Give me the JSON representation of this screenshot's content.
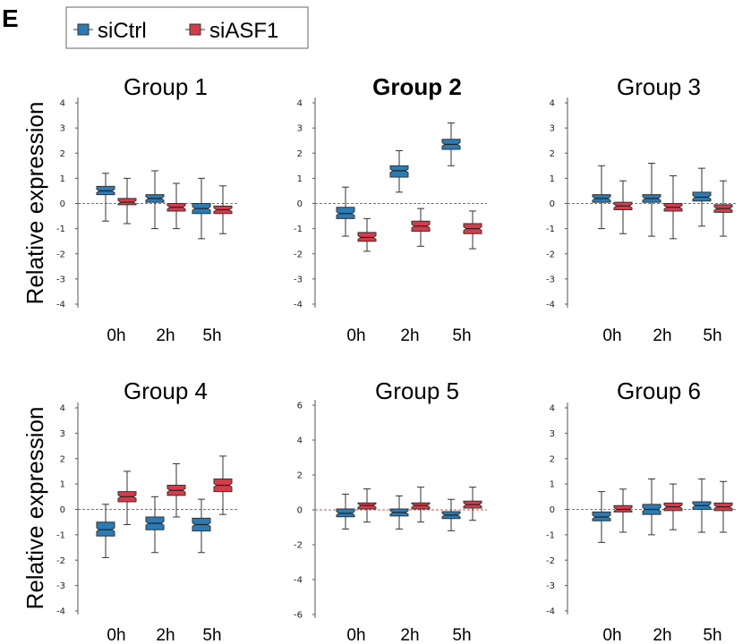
{
  "chart_data": {
    "type": "boxplot",
    "panel_label": "E",
    "legend": [
      {
        "name": "siCtrl",
        "color": "#2b7bb5"
      },
      {
        "name": "siASF1",
        "color": "#d63b4a"
      }
    ],
    "ylabel": "Relative expression",
    "categories": [
      "0h",
      "2h",
      "5h"
    ],
    "reference_line": 0,
    "panels": [
      {
        "title": "Group 1",
        "bold": false,
        "ylim": [
          -4,
          4
        ],
        "yticks": [
          "4",
          "3",
          "2",
          "1",
          "0",
          "-1",
          "-2",
          "-3",
          "-4"
        ],
        "series": [
          {
            "name": "siCtrl",
            "boxes": [
              {
                "median": 0.5,
                "q1": 0.35,
                "q3": 0.68,
                "whisker_low": -0.7,
                "whisker_high": 1.2
              },
              {
                "median": 0.2,
                "q1": 0.05,
                "q3": 0.35,
                "whisker_low": -1.0,
                "whisker_high": 1.3
              },
              {
                "median": -0.2,
                "q1": -0.4,
                "q3": 0.0,
                "whisker_low": -1.4,
                "whisker_high": 1.0
              }
            ]
          },
          {
            "name": "siASF1",
            "boxes": [
              {
                "median": 0.05,
                "q1": -0.05,
                "q3": 0.2,
                "whisker_low": -0.8,
                "whisker_high": 1.0
              },
              {
                "median": -0.15,
                "q1": -0.3,
                "q3": 0.0,
                "whisker_low": -1.0,
                "whisker_high": 0.8
              },
              {
                "median": -0.25,
                "q1": -0.4,
                "q3": -0.1,
                "whisker_low": -1.2,
                "whisker_high": 0.7
              }
            ]
          }
        ]
      },
      {
        "title": "Group 2",
        "bold": true,
        "ylim": [
          -4,
          4
        ],
        "yticks": [
          "4",
          "3",
          "2",
          "1",
          "0",
          "-1",
          "-2",
          "-3",
          "-4"
        ],
        "series": [
          {
            "name": "siCtrl",
            "boxes": [
              {
                "median": -0.4,
                "q1": -0.6,
                "q3": -0.15,
                "whisker_low": -1.3,
                "whisker_high": 0.65
              },
              {
                "median": 1.3,
                "q1": 1.05,
                "q3": 1.5,
                "whisker_low": 0.45,
                "whisker_high": 2.1
              },
              {
                "median": 2.35,
                "q1": 2.15,
                "q3": 2.55,
                "whisker_low": 1.5,
                "whisker_high": 3.2
              }
            ]
          },
          {
            "name": "siASF1",
            "boxes": [
              {
                "median": -1.35,
                "q1": -1.5,
                "q3": -1.15,
                "whisker_low": -1.9,
                "whisker_high": -0.6
              },
              {
                "median": -0.9,
                "q1": -1.1,
                "q3": -0.7,
                "whisker_low": -1.7,
                "whisker_high": -0.2
              },
              {
                "median": -1.0,
                "q1": -1.2,
                "q3": -0.8,
                "whisker_low": -1.8,
                "whisker_high": -0.3
              }
            ]
          }
        ]
      },
      {
        "title": "Group 3",
        "bold": false,
        "ylim": [
          -4,
          4
        ],
        "yticks": [
          "4",
          "3",
          "2",
          "1",
          "0",
          "-1",
          "-2",
          "-3",
          "-4"
        ],
        "series": [
          {
            "name": "siCtrl",
            "boxes": [
              {
                "median": 0.2,
                "q1": 0.05,
                "q3": 0.35,
                "whisker_low": -1.0,
                "whisker_high": 1.5
              },
              {
                "median": 0.2,
                "q1": 0.05,
                "q3": 0.35,
                "whisker_low": -1.3,
                "whisker_high": 1.6
              },
              {
                "median": 0.25,
                "q1": 0.1,
                "q3": 0.45,
                "whisker_low": -0.9,
                "whisker_high": 1.4
              }
            ]
          },
          {
            "name": "siASF1",
            "boxes": [
              {
                "median": -0.1,
                "q1": -0.25,
                "q3": 0.05,
                "whisker_low": -1.2,
                "whisker_high": 0.9
              },
              {
                "median": -0.15,
                "q1": -0.3,
                "q3": 0.0,
                "whisker_low": -1.4,
                "whisker_high": 1.1
              },
              {
                "median": -0.2,
                "q1": -0.35,
                "q3": -0.05,
                "whisker_low": -1.3,
                "whisker_high": 0.9
              }
            ]
          }
        ]
      },
      {
        "title": "Group 4",
        "bold": false,
        "ylim": [
          -4,
          4
        ],
        "yticks": [
          "4",
          "3",
          "2",
          "1",
          "0",
          "-1",
          "-2",
          "-3",
          "-4"
        ],
        "series": [
          {
            "name": "siCtrl",
            "boxes": [
              {
                "median": -0.8,
                "q1": -1.05,
                "q3": -0.5,
                "whisker_low": -1.9,
                "whisker_high": 0.2
              },
              {
                "median": -0.55,
                "q1": -0.8,
                "q3": -0.3,
                "whisker_low": -1.7,
                "whisker_high": 0.5
              },
              {
                "median": -0.6,
                "q1": -0.85,
                "q3": -0.35,
                "whisker_low": -1.7,
                "whisker_high": 0.4
              }
            ]
          },
          {
            "name": "siASF1",
            "boxes": [
              {
                "median": 0.5,
                "q1": 0.3,
                "q3": 0.7,
                "whisker_low": -0.6,
                "whisker_high": 1.5
              },
              {
                "median": 0.75,
                "q1": 0.55,
                "q3": 0.95,
                "whisker_low": -0.3,
                "whisker_high": 1.8
              },
              {
                "median": 0.95,
                "q1": 0.7,
                "q3": 1.2,
                "whisker_low": -0.2,
                "whisker_high": 2.1
              }
            ]
          }
        ]
      },
      {
        "title": "Group 5",
        "bold": false,
        "ylim": [
          -6,
          6
        ],
        "yticks": [
          "6",
          "4",
          "2",
          "0",
          "-2",
          "-4",
          "-6"
        ],
        "series": [
          {
            "name": "siCtrl",
            "boxes": [
              {
                "median": -0.2,
                "q1": -0.4,
                "q3": 0.05,
                "whisker_low": -1.1,
                "whisker_high": 0.9
              },
              {
                "median": -0.15,
                "q1": -0.35,
                "q3": 0.05,
                "whisker_low": -1.1,
                "whisker_high": 0.8
              },
              {
                "median": -0.3,
                "q1": -0.5,
                "q3": -0.1,
                "whisker_low": -1.2,
                "whisker_high": 0.6
              }
            ]
          },
          {
            "name": "siASF1",
            "boxes": [
              {
                "median": 0.25,
                "q1": 0.05,
                "q3": 0.4,
                "whisker_low": -0.7,
                "whisker_high": 1.2
              },
              {
                "median": 0.25,
                "q1": 0.05,
                "q3": 0.4,
                "whisker_low": -0.7,
                "whisker_high": 1.3
              },
              {
                "median": 0.3,
                "q1": 0.1,
                "q3": 0.5,
                "whisker_low": -0.6,
                "whisker_high": 1.3
              }
            ]
          }
        ]
      },
      {
        "title": "Group 6",
        "bold": false,
        "ylim": [
          -4,
          4
        ],
        "yticks": [
          "4",
          "3",
          "2",
          "1",
          "0",
          "-1",
          "-2",
          "-3",
          "-4"
        ],
        "series": [
          {
            "name": "siCtrl",
            "boxes": [
              {
                "median": -0.3,
                "q1": -0.45,
                "q3": -0.1,
                "whisker_low": -1.3,
                "whisker_high": 0.7
              },
              {
                "median": 0.0,
                "q1": -0.2,
                "q3": 0.2,
                "whisker_low": -1.0,
                "whisker_high": 1.2
              },
              {
                "median": 0.15,
                "q1": 0.0,
                "q3": 0.3,
                "whisker_low": -0.9,
                "whisker_high": 1.2
              }
            ]
          },
          {
            "name": "siASF1",
            "boxes": [
              {
                "median": 0.0,
                "q1": -0.1,
                "q3": 0.15,
                "whisker_low": -0.9,
                "whisker_high": 0.8
              },
              {
                "median": 0.1,
                "q1": -0.05,
                "q3": 0.25,
                "whisker_low": -0.8,
                "whisker_high": 1.0
              },
              {
                "median": 0.1,
                "q1": -0.05,
                "q3": 0.25,
                "whisker_low": -0.9,
                "whisker_high": 1.1
              }
            ]
          }
        ]
      }
    ]
  }
}
